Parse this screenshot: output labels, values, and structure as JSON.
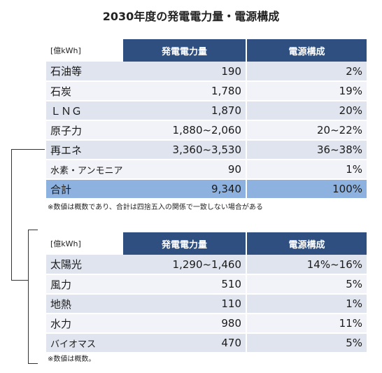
{
  "title": "2030年度の発電電力量・電源構成",
  "table1": {
    "unit": "[億kWh]",
    "headers": [
      "発電電力量",
      "電源構成"
    ],
    "rows": [
      {
        "name": "石油等",
        "power": "190",
        "share": "2%"
      },
      {
        "name": "石炭",
        "power": "1,780",
        "share": "19%"
      },
      {
        "name": "ＬＮＧ",
        "power": "1,870",
        "share": "20%"
      },
      {
        "name": "原子力",
        "power": "1,880~2,060",
        "share": "20~22%"
      },
      {
        "name": "再エネ",
        "power": "3,360~3,530",
        "share": "36~38%"
      },
      {
        "name": "水素・アンモニア",
        "power": "90",
        "share": "1%"
      }
    ],
    "total": {
      "name": "合計",
      "power": "9,340",
      "share": "100%"
    },
    "note": "※数値は概数であり、合計は四捨五入の関係で一致しない場合がある"
  },
  "table2": {
    "unit": "[億kWh]",
    "headers": [
      "発電電力量",
      "電源構成"
    ],
    "rows": [
      {
        "name": "太陽光",
        "power": "1,290~1,460",
        "share": "14%~16%"
      },
      {
        "name": "風力",
        "power": "510",
        "share": "5%"
      },
      {
        "name": "地熱",
        "power": "110",
        "share": "1%"
      },
      {
        "name": "水力",
        "power": "980",
        "share": "11%"
      },
      {
        "name": "バイオマス",
        "power": "470",
        "share": "5%"
      }
    ],
    "note": "※数値は概数。"
  }
}
